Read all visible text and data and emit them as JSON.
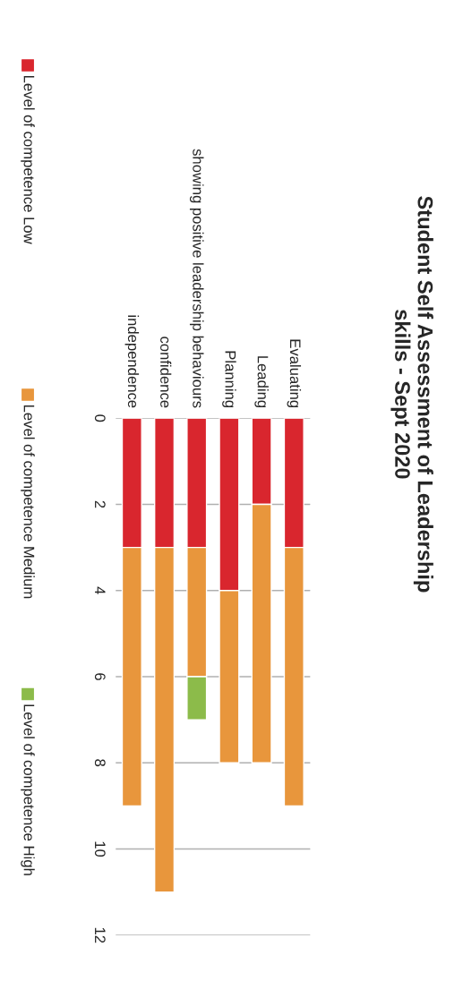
{
  "chart_data": {
    "type": "bar",
    "title": "Student Self Assessment of Leadership\nskills - Sept 2020",
    "categories": [
      "independence",
      "confidence",
      "showing positive leadership behaviours",
      "Planning",
      "Leading",
      "Evaluating"
    ],
    "series": [
      {
        "name": "Level of competence Low",
        "color": "#d9262e",
        "values": [
          3,
          3,
          3,
          4,
          2,
          3
        ]
      },
      {
        "name": "Level of competence Medium",
        "color": "#e8963c",
        "values": [
          6,
          8,
          3,
          4,
          6,
          6
        ]
      },
      {
        "name": "Level of competence High",
        "color": "#8cbb4a",
        "values": [
          null,
          null,
          1,
          null,
          null,
          null
        ]
      }
    ],
    "stacked": true,
    "ylim": [
      12,
      0
    ],
    "yticks": [
      0,
      2,
      4,
      6,
      8,
      10,
      12
    ],
    "grid": "y",
    "legend": "left"
  }
}
